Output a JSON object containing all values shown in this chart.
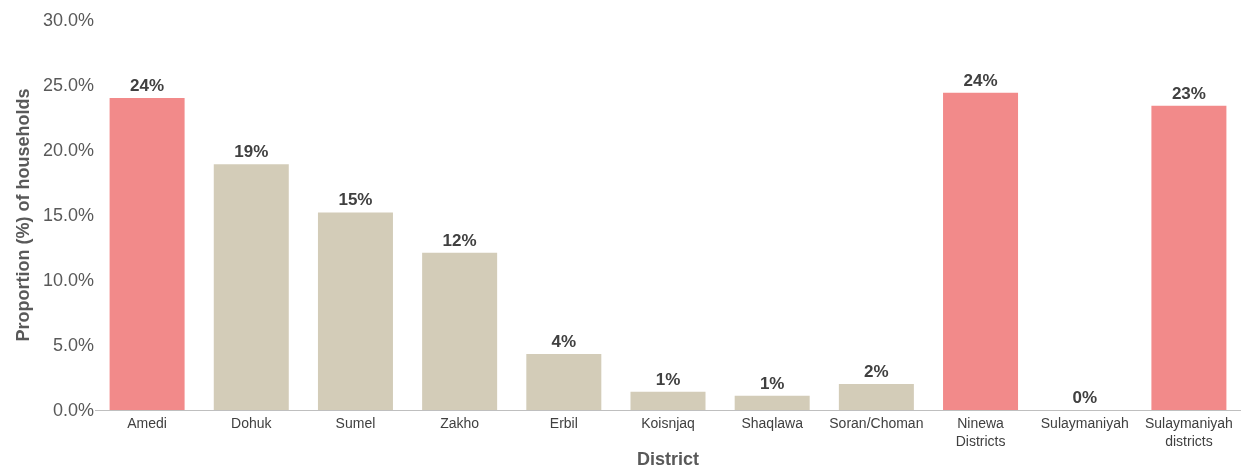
{
  "chart_data": {
    "type": "bar",
    "xlabel": "District",
    "ylabel": "Proportion (%) of households",
    "categories": [
      "Amedi",
      "Dohuk",
      "Sumel",
      "Zakho",
      "Erbil",
      "Koisnjaq",
      "Shaqlawa",
      "Soran/Choman",
      "Ninewa Districts",
      "Sulaymaniyah",
      "Sulaymaniyah districts"
    ],
    "values": [
      24.0,
      18.9,
      15.2,
      12.1,
      4.3,
      1.4,
      1.1,
      2.0,
      24.4,
      0,
      23.4
    ],
    "colors": [
      "#f28a8a",
      "#d3ccb8",
      "#d3ccb8",
      "#d3ccb8",
      "#d3ccb8",
      "#d3ccb8",
      "#d3ccb8",
      "#d3ccb8",
      "#f28a8a",
      "#d3ccb8",
      "#f28a8a"
    ],
    "value_labels": [
      "24%",
      "19%",
      "15%",
      "12%",
      "4%",
      "1%",
      "1%",
      "2%",
      "24%",
      "0%",
      "23%"
    ],
    "ylim": [
      0,
      30
    ],
    "yticks": [
      {
        "value": 0,
        "label": "0.0%"
      },
      {
        "value": 5,
        "label": "5.0%"
      },
      {
        "value": 10,
        "label": "10.0%"
      },
      {
        "value": 15,
        "label": "15.0%"
      },
      {
        "value": 20,
        "label": "20.0%"
      },
      {
        "value": 25,
        "label": "25.0%"
      },
      {
        "value": 30,
        "label": "30.0%"
      }
    ],
    "data_labels": false
  }
}
